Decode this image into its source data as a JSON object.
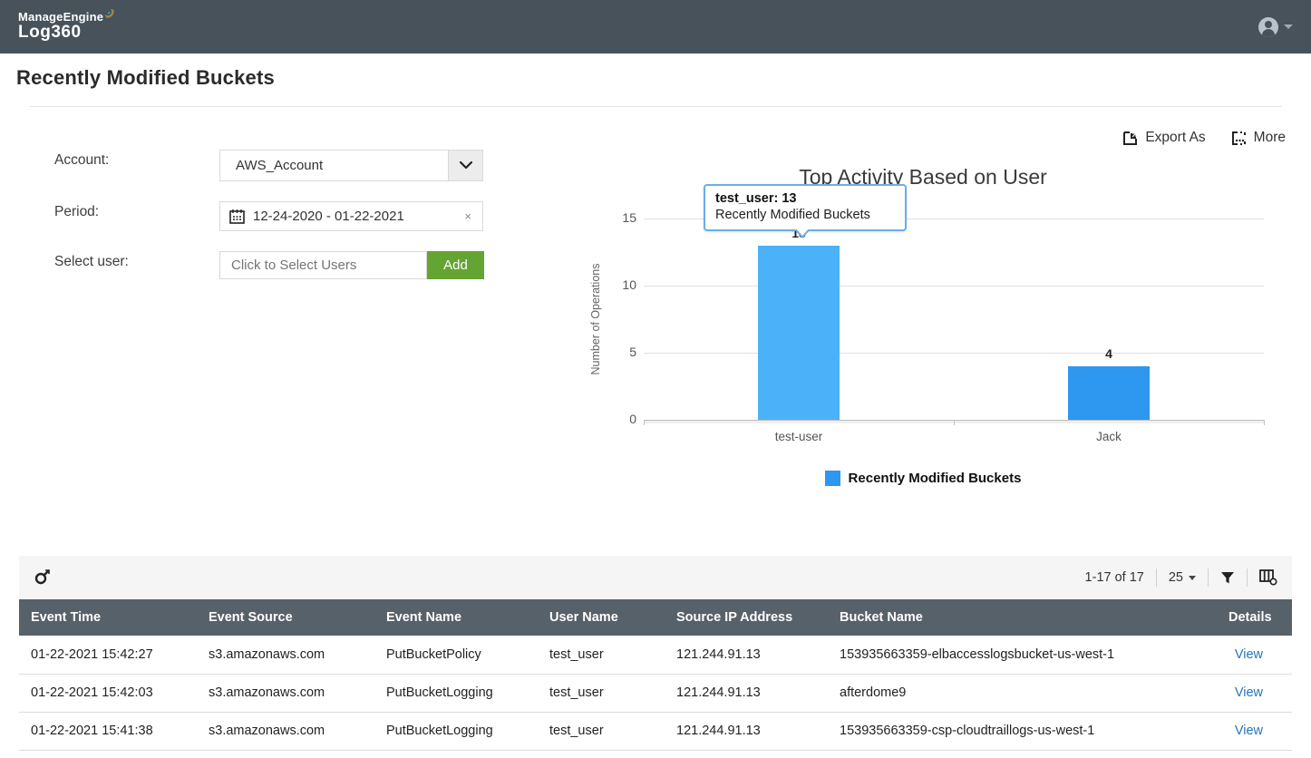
{
  "topbar": {
    "brand_top": "ManageEngine",
    "brand_bottom": "Log360"
  },
  "page": {
    "title": "Recently Modified Buckets"
  },
  "actions": {
    "export_label": "Export As",
    "more_label": "More"
  },
  "filters": {
    "account": {
      "label": "Account:",
      "value": "AWS_Account"
    },
    "period": {
      "label": "Period:",
      "value": "12-24-2020 - 01-22-2021",
      "clear": "×"
    },
    "user": {
      "label": "Select user:",
      "placeholder": "Click to Select Users",
      "add_label": "Add"
    }
  },
  "chart_data": {
    "type": "bar",
    "title": "Top Activity Based on User",
    "categories": [
      "test-user",
      "Jack"
    ],
    "values": [
      13,
      4
    ],
    "series": [
      {
        "name": "Recently Modified Buckets",
        "values": [
          13,
          4
        ]
      }
    ],
    "xlabel": "",
    "ylabel": "Number of Operations",
    "yticks": [
      0,
      5,
      10,
      15
    ],
    "ylim": [
      0,
      15
    ],
    "grid": true,
    "legend_position": "bottom",
    "legend": [
      "Recently Modified Buckets"
    ],
    "bar_color": "#2e97ef",
    "bar_color_hover": "#4bb2f9",
    "tooltip": {
      "title": "test_user: 13",
      "subtitle": "Recently Modified Buckets",
      "target_category": "test-user"
    }
  },
  "table": {
    "toolbar": {
      "pagination": "1-17 of 17",
      "page_size": "25"
    },
    "columns": [
      {
        "key": "event_time",
        "label": "Event Time"
      },
      {
        "key": "event_source",
        "label": "Event Source"
      },
      {
        "key": "event_name",
        "label": "Event Name"
      },
      {
        "key": "user_name",
        "label": "User Name"
      },
      {
        "key": "source_ip",
        "label": "Source IP Address"
      },
      {
        "key": "bucket_name",
        "label": "Bucket Name"
      },
      {
        "key": "details",
        "label": "Details"
      }
    ],
    "rows": [
      {
        "event_time": "01-22-2021 15:42:27",
        "event_source": "s3.amazonaws.com",
        "event_name": "PutBucketPolicy",
        "user_name": "test_user",
        "source_ip": "121.244.91.13",
        "bucket_name": "153935663359-elbaccesslogsbucket-us-west-1",
        "details": "View"
      },
      {
        "event_time": "01-22-2021 15:42:03",
        "event_source": "s3.amazonaws.com",
        "event_name": "PutBucketLogging",
        "user_name": "test_user",
        "source_ip": "121.244.91.13",
        "bucket_name": "afterdome9",
        "details": "View"
      },
      {
        "event_time": "01-22-2021 15:41:38",
        "event_source": "s3.amazonaws.com",
        "event_name": "PutBucketLogging",
        "user_name": "test_user",
        "source_ip": "121.244.91.13",
        "bucket_name": "153935663359-csp-cloudtraillogs-us-west-1",
        "details": "View"
      }
    ]
  }
}
